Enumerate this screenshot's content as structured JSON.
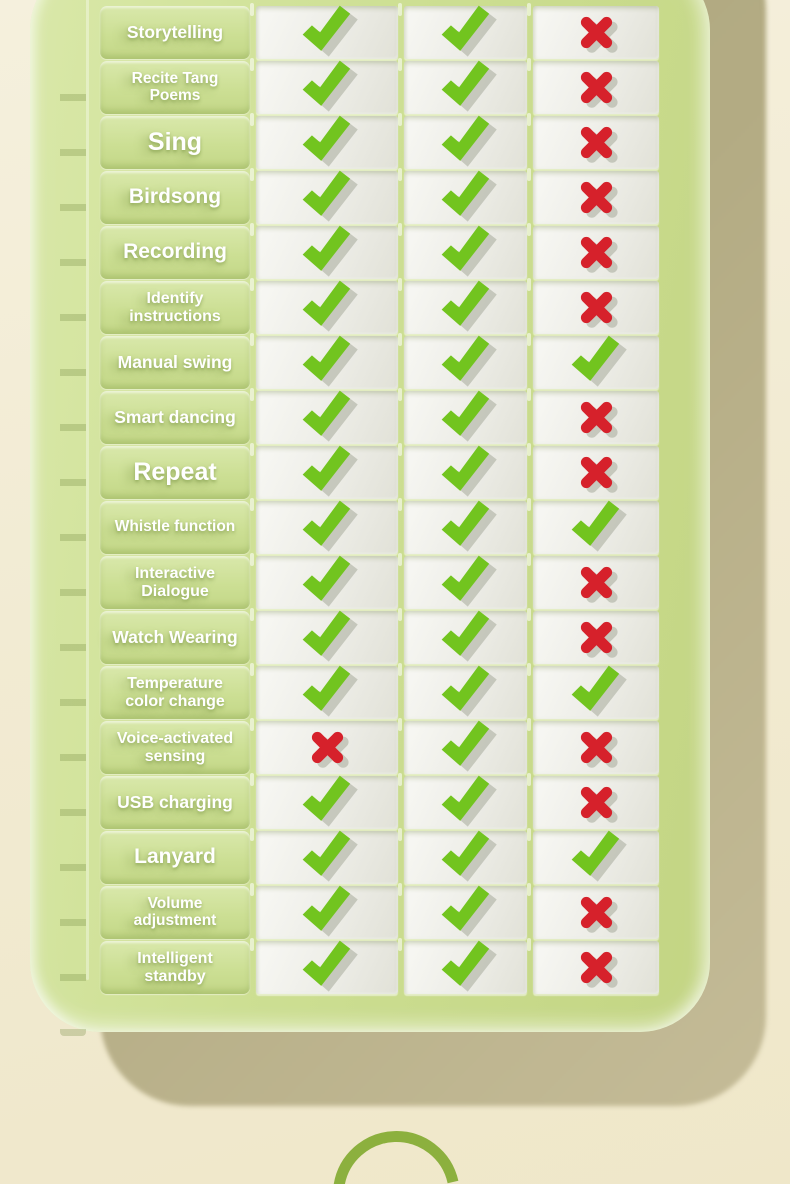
{
  "chart_data": {
    "type": "table",
    "title": "",
    "row_labels": [
      "Storytelling",
      "Recite Tang Poems",
      "Sing",
      "Birdsong",
      "Recording",
      "Identify instructions",
      "Manual swing",
      "Smart dancing",
      "Repeat",
      "Whistle function",
      "Interactive Dialogue",
      "Watch Wearing",
      "Temperature color change",
      "Voice-activated sensing",
      "USB charging",
      "Lanyard",
      "Volume adjustment",
      "Intelligent standby"
    ],
    "columns": [
      {
        "id": "column-1",
        "values": [
          true,
          true,
          true,
          true,
          true,
          true,
          true,
          true,
          true,
          true,
          true,
          true,
          true,
          false,
          true,
          true,
          true,
          true
        ]
      },
      {
        "id": "column-2",
        "values": [
          true,
          true,
          true,
          true,
          true,
          true,
          true,
          true,
          true,
          true,
          true,
          true,
          true,
          true,
          true,
          true,
          true,
          true
        ]
      },
      {
        "id": "column-3",
        "values": [
          false,
          false,
          false,
          false,
          false,
          false,
          true,
          false,
          false,
          true,
          false,
          false,
          true,
          false,
          false,
          true,
          false,
          false
        ]
      }
    ],
    "mark_true": "check",
    "mark_false": "cross"
  },
  "colors": {
    "check_green": "#72c41f",
    "cross_red": "#d6212b",
    "mark_shadow": "#a0a394",
    "panel_green": "#cddf93",
    "label_button_green": "#ccdf94",
    "cell_offwhite": "#ececE6",
    "background_cream": "#f2ebd3",
    "drop_shadow_tan": "#b3ab83",
    "arc_olive": "#8cb03e"
  }
}
